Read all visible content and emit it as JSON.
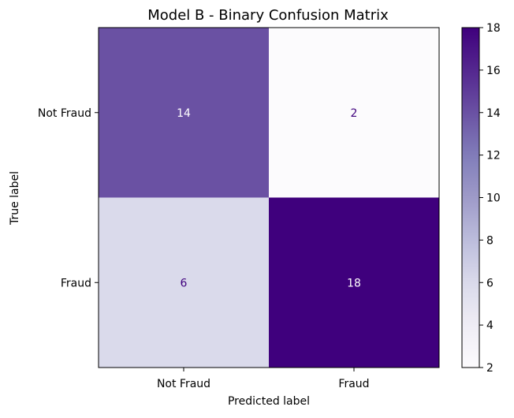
{
  "chart_data": {
    "type": "heatmap",
    "title": "Model B - Binary Confusion Matrix",
    "xlabel": "Predicted label",
    "ylabel": "True label",
    "x_categories": [
      "Not Fraud",
      "Fraud"
    ],
    "y_categories": [
      "Not Fraud",
      "Fraud"
    ],
    "matrix": [
      [
        14,
        2
      ],
      [
        6,
        18
      ]
    ],
    "colormap": "Purples",
    "color_low": "#fcfbfd",
    "color_high": "#3f007d",
    "colorbar": {
      "min": 2,
      "max": 18,
      "ticks": [
        2,
        4,
        6,
        8,
        10,
        12,
        14,
        16,
        18
      ]
    },
    "grid": false
  }
}
